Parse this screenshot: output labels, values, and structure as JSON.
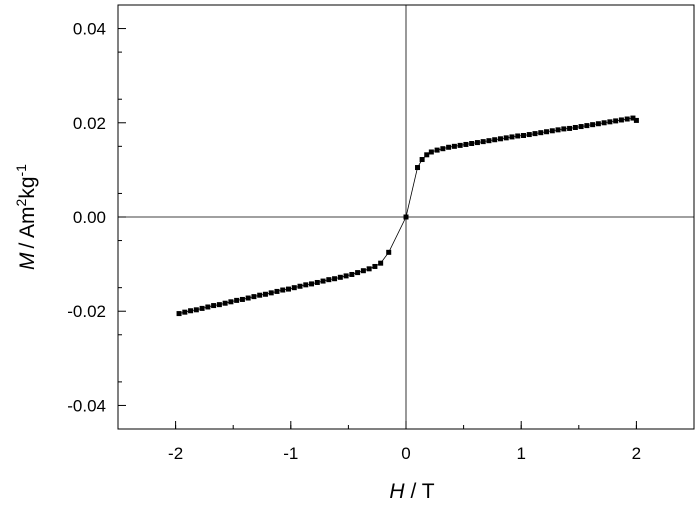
{
  "chart_data": {
    "type": "scatter",
    "xlabel": {
      "symbol": "H",
      "unit": "/ T"
    },
    "ylabel": {
      "symbol": "M",
      "unit": "/ Am",
      "sup1": "2",
      "mid": "kg",
      "sup2": "-1"
    },
    "xlim": [
      -2.5,
      2.5
    ],
    "ylim": [
      -0.045,
      0.045
    ],
    "xticks": [
      -2,
      -1,
      0,
      1,
      2
    ],
    "xtick_labels": [
      "-2",
      "-1",
      "0",
      "1",
      "2"
    ],
    "yticks": [
      -0.04,
      -0.02,
      0.0,
      0.02,
      0.04
    ],
    "ytick_labels": [
      "-0.04",
      "-0.02",
      "0.00",
      "0.02",
      "0.04"
    ],
    "reference_lines": {
      "x": 0,
      "y": 0
    },
    "grid": false,
    "legend": "none",
    "series": [
      {
        "marker": "square",
        "line": true,
        "x": [
          -1.97,
          -1.92,
          -1.87,
          -1.82,
          -1.77,
          -1.72,
          -1.67,
          -1.62,
          -1.57,
          -1.52,
          -1.47,
          -1.42,
          -1.37,
          -1.32,
          -1.27,
          -1.22,
          -1.17,
          -1.12,
          -1.07,
          -1.02,
          -0.97,
          -0.92,
          -0.87,
          -0.82,
          -0.77,
          -0.72,
          -0.67,
          -0.62,
          -0.57,
          -0.52,
          -0.47,
          -0.42,
          -0.37,
          -0.32,
          -0.27,
          -0.22,
          -0.15,
          0.0,
          0.1,
          0.14,
          0.18,
          0.22,
          0.27,
          0.32,
          0.37,
          0.42,
          0.47,
          0.52,
          0.57,
          0.62,
          0.67,
          0.72,
          0.77,
          0.82,
          0.87,
          0.92,
          0.97,
          1.02,
          1.07,
          1.12,
          1.17,
          1.22,
          1.27,
          1.32,
          1.37,
          1.42,
          1.47,
          1.52,
          1.57,
          1.62,
          1.67,
          1.72,
          1.77,
          1.82,
          1.87,
          1.92,
          1.97,
          2.0
        ],
        "y": [
          -0.0205,
          -0.0202,
          -0.0199,
          -0.0197,
          -0.0194,
          -0.0191,
          -0.0188,
          -0.0186,
          -0.0183,
          -0.018,
          -0.0177,
          -0.0175,
          -0.0172,
          -0.0169,
          -0.0166,
          -0.0164,
          -0.0161,
          -0.0158,
          -0.0155,
          -0.0153,
          -0.015,
          -0.0147,
          -0.0144,
          -0.0142,
          -0.0139,
          -0.0136,
          -0.0133,
          -0.0131,
          -0.0128,
          -0.0125,
          -0.0122,
          -0.0118,
          -0.0114,
          -0.011,
          -0.0105,
          -0.0098,
          -0.0075,
          0.0,
          0.0105,
          0.0122,
          0.0132,
          0.0138,
          0.0142,
          0.0145,
          0.0148,
          0.015,
          0.0152,
          0.0154,
          0.0156,
          0.0158,
          0.016,
          0.0162,
          0.0164,
          0.0166,
          0.0168,
          0.017,
          0.0172,
          0.0173,
          0.0175,
          0.0177,
          0.0179,
          0.0181,
          0.0183,
          0.0185,
          0.0187,
          0.0188,
          0.019,
          0.0192,
          0.0194,
          0.0196,
          0.0198,
          0.02,
          0.0202,
          0.0204,
          0.0206,
          0.0208,
          0.021,
          0.0205
        ]
      }
    ]
  }
}
